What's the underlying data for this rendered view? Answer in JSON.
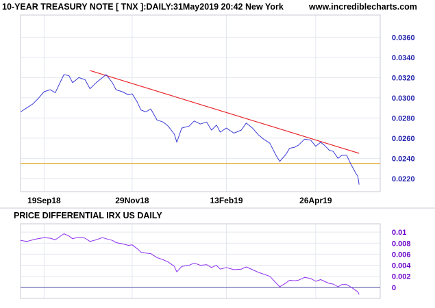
{
  "colors": {
    "background": "#ffffff",
    "grid": "#e3e7ef",
    "axis_border": "#c8cbd6",
    "price_line": "#3b3bd6",
    "trend_line": "#e8262b",
    "support_line": "#e0a01a",
    "differential_line": "#8c2cf0",
    "zero_line": "#4a4aa0",
    "price_axis_text": "#1a1aa8",
    "diff_axis_text": "#6a00c8"
  },
  "chart_data": [
    {
      "type": "line",
      "title": "10-YEAR TREASURY NOTE [ TNX ]:DAILY:31May2019 20:42 New York",
      "watermark": "www.incrediblecharts.com",
      "x_tick_labels": [
        "19Sep18",
        "29Nov18",
        "13Feb19",
        "26Apr19"
      ],
      "x_tick_dates": [
        "2018-09-19",
        "2018-11-29",
        "2019-02-13",
        "2019-04-26"
      ],
      "x_range": [
        "2018-08-31",
        "2019-06-17"
      ],
      "y_tick_labels": [
        "0.0360",
        "0.0340",
        "0.0320",
        "0.0300",
        "0.0280",
        "0.0260",
        "0.0240",
        "0.0220"
      ],
      "y_ticks": [
        0.036,
        0.034,
        0.032,
        0.03,
        0.028,
        0.026,
        0.024,
        0.022
      ],
      "ylim": [
        0.0207,
        0.0382
      ],
      "grid": true,
      "series": [
        {
          "role": "price",
          "points": [
            [
              "2018-08-31",
              0.0286
            ],
            [
              "2018-09-05",
              0.029
            ],
            [
              "2018-09-10",
              0.0294
            ],
            [
              "2018-09-14",
              0.0299
            ],
            [
              "2018-09-19",
              0.0306
            ],
            [
              "2018-09-24",
              0.0308
            ],
            [
              "2018-09-28",
              0.0305
            ],
            [
              "2018-10-03",
              0.0318
            ],
            [
              "2018-10-05",
              0.0323
            ],
            [
              "2018-10-09",
              0.0322
            ],
            [
              "2018-10-12",
              0.0315
            ],
            [
              "2018-10-17",
              0.032
            ],
            [
              "2018-10-22",
              0.0318
            ],
            [
              "2018-10-26",
              0.0309
            ],
            [
              "2018-10-31",
              0.0315
            ],
            [
              "2018-11-05",
              0.032
            ],
            [
              "2018-11-08",
              0.0323
            ],
            [
              "2018-11-13",
              0.0315
            ],
            [
              "2018-11-16",
              0.0308
            ],
            [
              "2018-11-21",
              0.0306
            ],
            [
              "2018-11-26",
              0.0303
            ],
            [
              "2018-11-29",
              0.0304
            ],
            [
              "2018-12-03",
              0.0296
            ],
            [
              "2018-12-06",
              0.0288
            ],
            [
              "2018-12-10",
              0.0286
            ],
            [
              "2018-12-14",
              0.0289
            ],
            [
              "2018-12-19",
              0.0278
            ],
            [
              "2018-12-24",
              0.0276
            ],
            [
              "2018-12-28",
              0.0272
            ],
            [
              "2019-01-02",
              0.0264
            ],
            [
              "2019-01-04",
              0.0256
            ],
            [
              "2019-01-08",
              0.027
            ],
            [
              "2019-01-14",
              0.0272
            ],
            [
              "2019-01-18",
              0.0277
            ],
            [
              "2019-01-23",
              0.0274
            ],
            [
              "2019-01-28",
              0.0276
            ],
            [
              "2019-02-01",
              0.0268
            ],
            [
              "2019-02-05",
              0.0273
            ],
            [
              "2019-02-08",
              0.0266
            ],
            [
              "2019-02-13",
              0.027
            ],
            [
              "2019-02-19",
              0.0265
            ],
            [
              "2019-02-25",
              0.0268
            ],
            [
              "2019-03-01",
              0.0275
            ],
            [
              "2019-03-06",
              0.027
            ],
            [
              "2019-03-11",
              0.0263
            ],
            [
              "2019-03-15",
              0.0259
            ],
            [
              "2019-03-20",
              0.0255
            ],
            [
              "2019-03-25",
              0.0243
            ],
            [
              "2019-03-28",
              0.0237
            ],
            [
              "2019-04-02",
              0.0244
            ],
            [
              "2019-04-05",
              0.025
            ],
            [
              "2019-04-09",
              0.0251
            ],
            [
              "2019-04-12",
              0.0253
            ],
            [
              "2019-04-17",
              0.0259
            ],
            [
              "2019-04-22",
              0.0258
            ],
            [
              "2019-04-26",
              0.0252
            ],
            [
              "2019-04-30",
              0.0256
            ],
            [
              "2019-05-03",
              0.0253
            ],
            [
              "2019-05-07",
              0.0248
            ],
            [
              "2019-05-10",
              0.0247
            ],
            [
              "2019-05-14",
              0.024
            ],
            [
              "2019-05-17",
              0.0243
            ],
            [
              "2019-05-21",
              0.0243
            ],
            [
              "2019-05-24",
              0.0235
            ],
            [
              "2019-05-28",
              0.0226
            ],
            [
              "2019-05-30",
              0.0222
            ],
            [
              "2019-05-31",
              0.0214
            ]
          ]
        },
        {
          "role": "trendline",
          "points": [
            [
              "2018-10-26",
              0.0327
            ],
            [
              "2019-05-31",
              0.0245
            ]
          ]
        },
        {
          "role": "support",
          "y": 0.0235,
          "points": [
            [
              "2018-08-31",
              0.0235
            ],
            [
              "2019-06-17",
              0.0235
            ]
          ]
        }
      ]
    },
    {
      "type": "line",
      "title": "PRICE DIFFERENTIAL IRX US DAILY",
      "x_tick_dates": [
        "2018-09-19",
        "2018-11-29",
        "2019-02-13",
        "2019-04-26"
      ],
      "x_range": [
        "2018-08-31",
        "2019-06-17"
      ],
      "y_tick_labels": [
        "0.01",
        "0.008",
        "0.006",
        "0.004",
        "0.002",
        "0"
      ],
      "y_ticks": [
        0.01,
        0.008,
        0.006,
        0.004,
        0.002,
        0.0
      ],
      "ylim": [
        -0.002,
        0.0115
      ],
      "zero_line": 0,
      "grid": true,
      "series": [
        {
          "role": "differential",
          "points": [
            [
              "2018-08-31",
              0.0085
            ],
            [
              "2018-09-05",
              0.0083
            ],
            [
              "2018-09-10",
              0.0086
            ],
            [
              "2018-09-14",
              0.0088
            ],
            [
              "2018-09-19",
              0.009
            ],
            [
              "2018-09-24",
              0.0089
            ],
            [
              "2018-09-28",
              0.0086
            ],
            [
              "2018-10-03",
              0.0094
            ],
            [
              "2018-10-05",
              0.0097
            ],
            [
              "2018-10-09",
              0.0093
            ],
            [
              "2018-10-12",
              0.0088
            ],
            [
              "2018-10-17",
              0.0091
            ],
            [
              "2018-10-22",
              0.0089
            ],
            [
              "2018-10-26",
              0.0083
            ],
            [
              "2018-10-31",
              0.0086
            ],
            [
              "2018-11-05",
              0.009
            ],
            [
              "2018-11-08",
              0.0088
            ],
            [
              "2018-11-13",
              0.0085
            ],
            [
              "2018-11-16",
              0.0081
            ],
            [
              "2018-11-21",
              0.0079
            ],
            [
              "2018-11-26",
              0.0076
            ],
            [
              "2018-11-29",
              0.0077
            ],
            [
              "2018-12-03",
              0.007
            ],
            [
              "2018-12-06",
              0.0064
            ],
            [
              "2018-12-10",
              0.0062
            ],
            [
              "2018-12-14",
              0.0061
            ],
            [
              "2018-12-19",
              0.0054
            ],
            [
              "2018-12-24",
              0.005
            ],
            [
              "2018-12-28",
              0.0046
            ],
            [
              "2019-01-02",
              0.0038
            ],
            [
              "2019-01-04",
              0.0028
            ],
            [
              "2019-01-08",
              0.0038
            ],
            [
              "2019-01-14",
              0.004
            ],
            [
              "2019-01-18",
              0.0044
            ],
            [
              "2019-01-23",
              0.004
            ],
            [
              "2019-01-28",
              0.0041
            ],
            [
              "2019-02-01",
              0.0036
            ],
            [
              "2019-02-05",
              0.004
            ],
            [
              "2019-02-08",
              0.0033
            ],
            [
              "2019-02-13",
              0.0036
            ],
            [
              "2019-02-19",
              0.0032
            ],
            [
              "2019-02-25",
              0.0033
            ],
            [
              "2019-03-01",
              0.0037
            ],
            [
              "2019-03-06",
              0.0032
            ],
            [
              "2019-03-11",
              0.0027
            ],
            [
              "2019-03-15",
              0.0024
            ],
            [
              "2019-03-20",
              0.002
            ],
            [
              "2019-03-25",
              0.0008
            ],
            [
              "2019-03-28",
              0.0001
            ],
            [
              "2019-04-02",
              0.0008
            ],
            [
              "2019-04-05",
              0.0013
            ],
            [
              "2019-04-09",
              0.0012
            ],
            [
              "2019-04-12",
              0.0013
            ],
            [
              "2019-04-17",
              0.0018
            ],
            [
              "2019-04-22",
              0.0016
            ],
            [
              "2019-04-26",
              0.0011
            ],
            [
              "2019-04-30",
              0.0014
            ],
            [
              "2019-05-03",
              0.0011
            ],
            [
              "2019-05-07",
              0.0007
            ],
            [
              "2019-05-10",
              0.0006
            ],
            [
              "2019-05-14",
              0.0001
            ],
            [
              "2019-05-17",
              0.0005
            ],
            [
              "2019-05-21",
              0.0005
            ],
            [
              "2019-05-24",
              0.0001
            ],
            [
              "2019-05-28",
              -0.0005
            ],
            [
              "2019-05-30",
              -0.0008
            ],
            [
              "2019-05-31",
              -0.0013
            ]
          ]
        }
      ]
    }
  ]
}
